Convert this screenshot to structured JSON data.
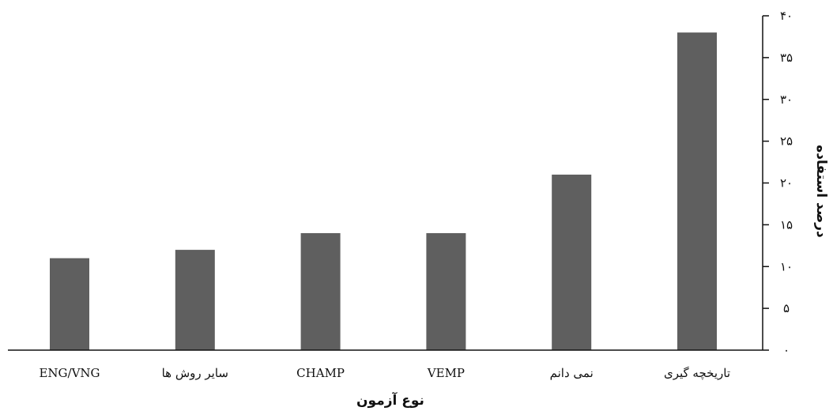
{
  "chart_data": {
    "type": "bar",
    "categories": [
      "ENG/VNG",
      "سایر روش ها",
      "CHAMP",
      "VEMP",
      "نمی دانم",
      "تاریخچه گیری"
    ],
    "values": [
      11,
      12,
      14,
      14,
      21,
      38
    ],
    "title": "",
    "xlabel": "نوع آزمون",
    "ylabel": "درصد استفاده",
    "ylim": [
      0,
      40
    ],
    "yticks": [
      0,
      5,
      10,
      15,
      20,
      25,
      30,
      35,
      40
    ],
    "ytick_labels": [
      "۰",
      "۵",
      "۱۰",
      "۱۵",
      "۲۰",
      "۲۵",
      "۳۰",
      "۳۵",
      "۴۰"
    ],
    "y_axis_side": "right",
    "grid": false,
    "legend": "none",
    "bar_color": "#5f5f5f"
  }
}
